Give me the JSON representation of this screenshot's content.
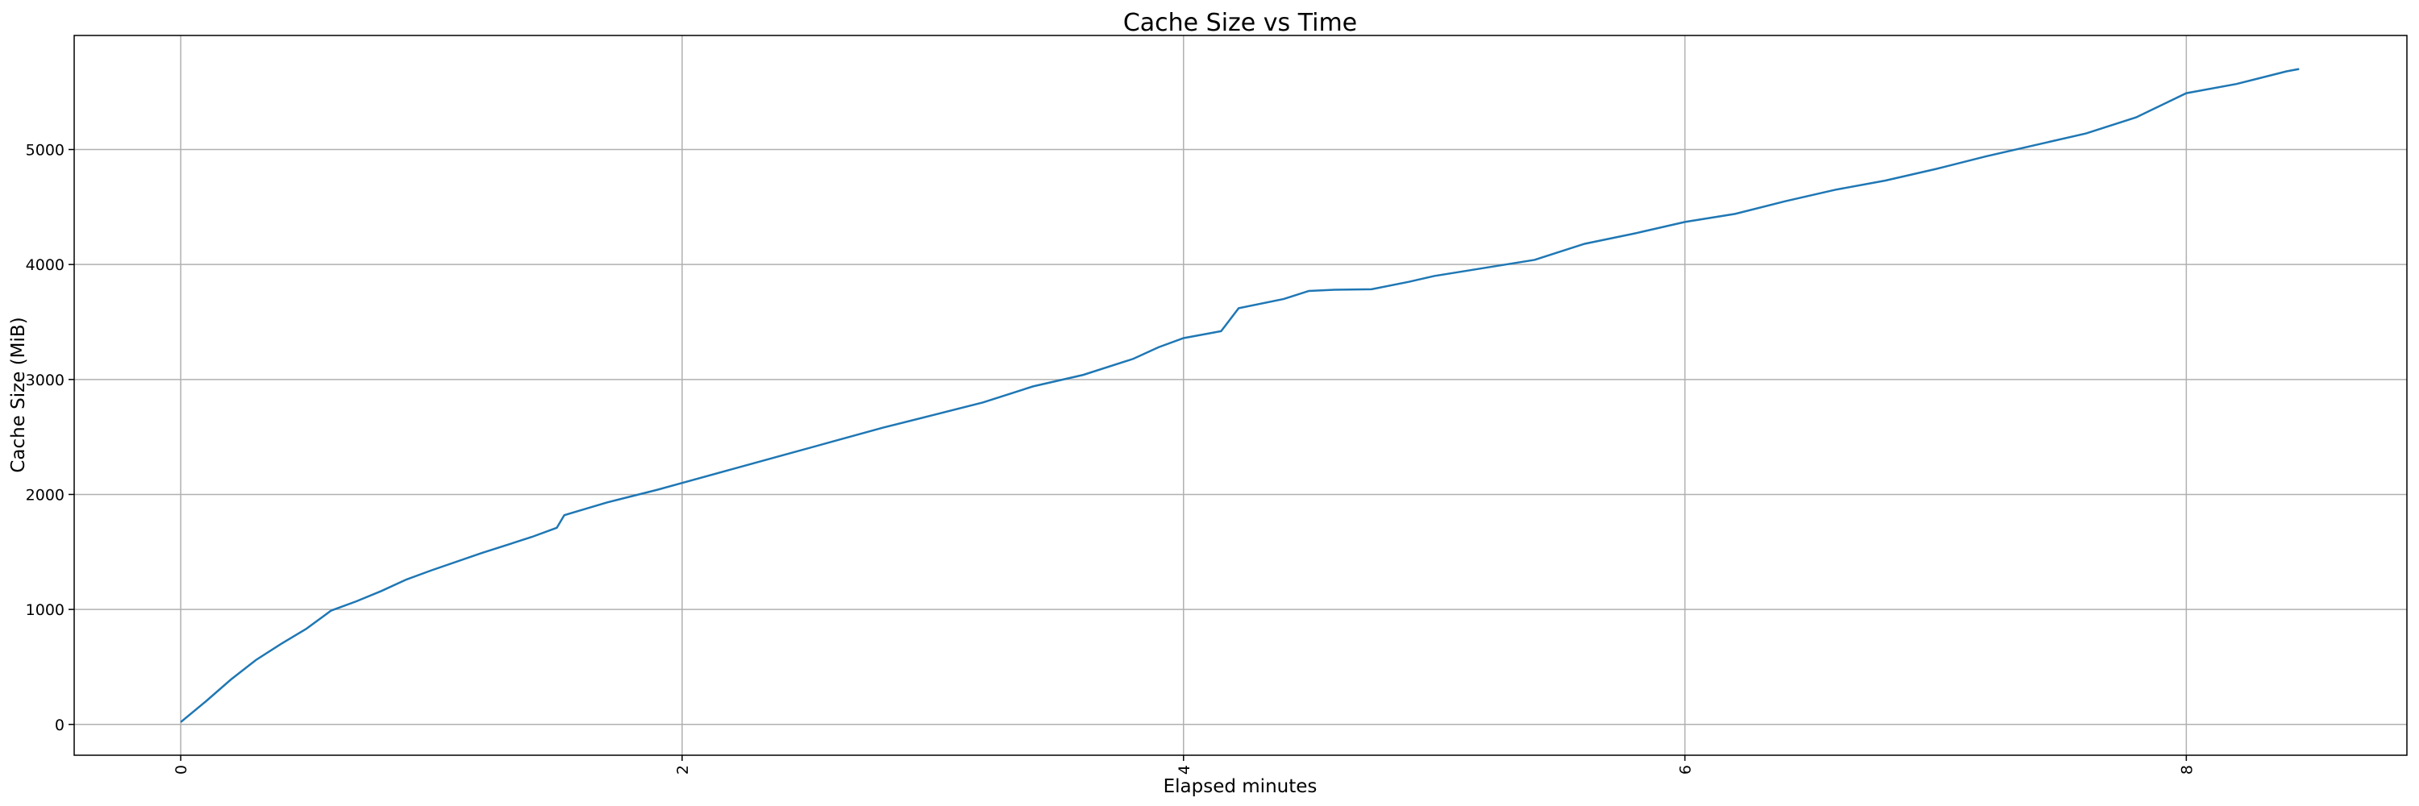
{
  "chart_data": {
    "type": "line",
    "title": "Cache Size vs Time",
    "x_label": "Elapsed minutes",
    "y_label": "Cache Size (MiB)",
    "x": [
      0,
      0.1,
      0.2,
      0.3,
      0.4,
      0.5,
      0.6,
      0.7,
      0.8,
      0.9,
      1.0,
      1.2,
      1.4,
      1.5,
      1.53,
      1.7,
      1.9,
      2.0,
      2.2,
      2.4,
      2.6,
      2.8,
      3.0,
      3.2,
      3.4,
      3.6,
      3.8,
      3.9,
      4.0,
      4.1,
      4.15,
      4.22,
      4.4,
      4.5,
      4.6,
      4.75,
      4.9,
      5.0,
      5.2,
      5.4,
      5.6,
      5.8,
      6.0,
      6.2,
      6.4,
      6.6,
      6.8,
      7.0,
      7.2,
      7.4,
      7.6,
      7.8,
      8.0,
      8.2,
      8.4,
      8.45
    ],
    "series": [
      {
        "name": "Cache Size",
        "color": "#1f77b4",
        "values": [
          20,
          200,
          390,
          560,
          700,
          830,
          990,
          1070,
          1160,
          1260,
          1340,
          1490,
          1630,
          1710,
          1820,
          1930,
          2040,
          2100,
          2220,
          2340,
          2460,
          2580,
          2690,
          2800,
          2940,
          3040,
          3180,
          3280,
          3360,
          3400,
          3420,
          3620,
          3700,
          3770,
          3780,
          3785,
          3850,
          3900,
          3970,
          4040,
          4180,
          4270,
          4370,
          4440,
          4550,
          4650,
          4730,
          4830,
          4940,
          5040,
          5140,
          5280,
          5490,
          5570,
          5680,
          5700
        ]
      }
    ],
    "xlim": [
      -0.425,
      8.88
    ],
    "ylim": [
      -268,
      5992
    ],
    "xticks": [
      0,
      2,
      4,
      6,
      8
    ],
    "yticks": [
      0,
      1000,
      2000,
      3000,
      4000,
      5000
    ],
    "grid": true
  }
}
